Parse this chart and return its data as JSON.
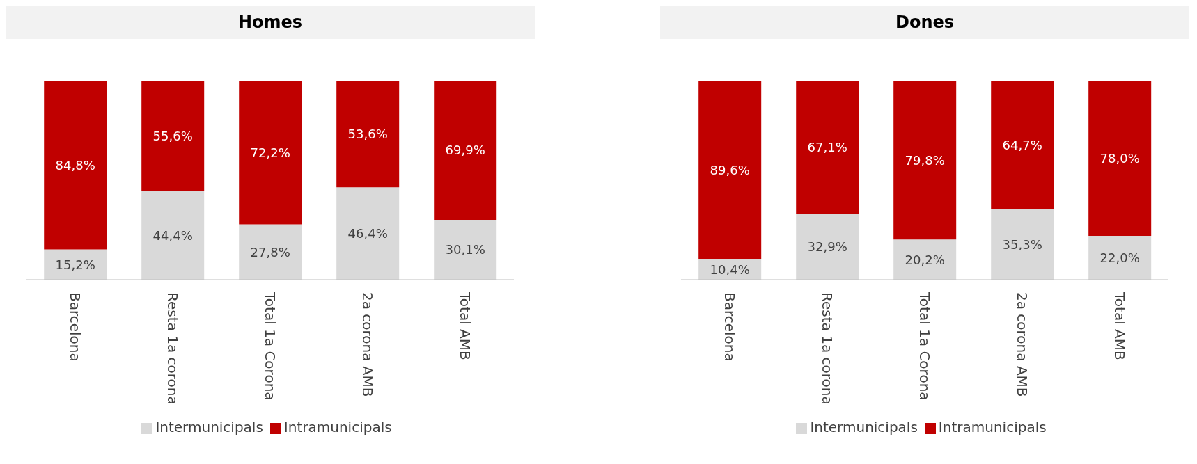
{
  "chart_data": [
    {
      "type": "bar",
      "title": "Homes",
      "stacked": true,
      "categories": [
        "Barcelona",
        "Resta 1a corona",
        "Total 1a Corona",
        "2a corona AMB",
        "Total AMB"
      ],
      "legend": "bottom",
      "series": [
        {
          "name": "Intermunicipals",
          "color": "#d9d9d9",
          "values": [
            15.2,
            44.4,
            27.8,
            46.4,
            30.1
          ],
          "value_labels": [
            "15,2%",
            "44,4%",
            "27,8%",
            "46,4%",
            "30,1%"
          ]
        },
        {
          "name": "Intramunicipals",
          "color": "#c00000",
          "values": [
            84.8,
            55.6,
            72.2,
            53.6,
            69.9
          ],
          "value_labels": [
            "84,8%",
            "55,6%",
            "72,2%",
            "53,6%",
            "69,9%"
          ]
        }
      ]
    },
    {
      "type": "bar",
      "title": "Dones",
      "stacked": true,
      "categories": [
        "Barcelona",
        "Resta 1a corona",
        "Total 1a Corona",
        "2a corona AMB",
        "Total AMB"
      ],
      "legend": "bottom",
      "series": [
        {
          "name": "Intermunicipals",
          "color": "#d9d9d9",
          "values": [
            10.4,
            32.9,
            20.2,
            35.3,
            22.0
          ],
          "value_labels": [
            "10,4%",
            "32,9%",
            "20,2%",
            "35,3%",
            "22,0%"
          ]
        },
        {
          "name": "Intramunicipals",
          "color": "#c00000",
          "values": [
            89.6,
            67.1,
            79.8,
            64.7,
            78.0
          ],
          "value_labels": [
            "89,6%",
            "67,1%",
            "79,8%",
            "64,7%",
            "78,0%"
          ]
        }
      ]
    }
  ]
}
